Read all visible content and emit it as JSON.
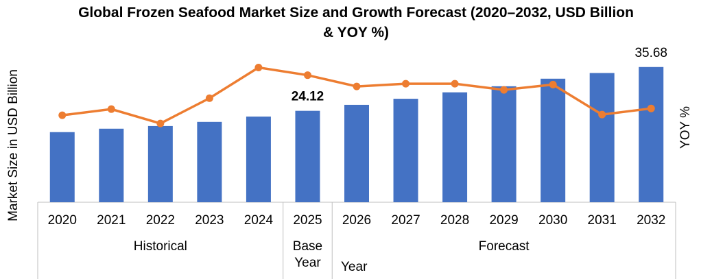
{
  "chart_data": {
    "type": "bar-line",
    "title": "Global Frozen Seafood Market  Size and Growth Forecast (2020–2032, USD Billion & YOY %)",
    "x_label": "Year",
    "y_label": "Market Size in USD Billion",
    "y2_label": "YOY %",
    "categories": [
      "2020",
      "2021",
      "2022",
      "2023",
      "2024",
      "2025",
      "2026",
      "2027",
      "2028",
      "2029",
      "2030",
      "2031",
      "2032"
    ],
    "groups": [
      {
        "label": "Historical",
        "count": 5
      },
      {
        "label": "Base Year",
        "count": 1
      },
      {
        "label": "Forecast",
        "count": 7
      }
    ],
    "ylim": [
      0,
      36
    ],
    "y2lim": [
      0,
      8
    ],
    "series": [
      {
        "name": "Market Size",
        "color": "#4472c4",
        "kind": "bar",
        "values": [
          18.5,
          19.4,
          20.1,
          21.2,
          22.6,
          24.12,
          25.7,
          27.3,
          29.0,
          30.6,
          32.6,
          34.1,
          35.68
        ],
        "value_labels": [
          null,
          null,
          null,
          null,
          null,
          "24.12",
          null,
          null,
          null,
          null,
          null,
          null,
          "35.68"
        ]
      },
      {
        "name": "YOY %",
        "color": "#ed7d31",
        "kind": "line",
        "axis": "y2",
        "values": [
          5.1,
          5.46,
          4.62,
          6.1,
          7.9,
          7.45,
          6.79,
          6.95,
          6.95,
          6.59,
          6.9,
          5.14,
          5.5
        ]
      }
    ]
  }
}
